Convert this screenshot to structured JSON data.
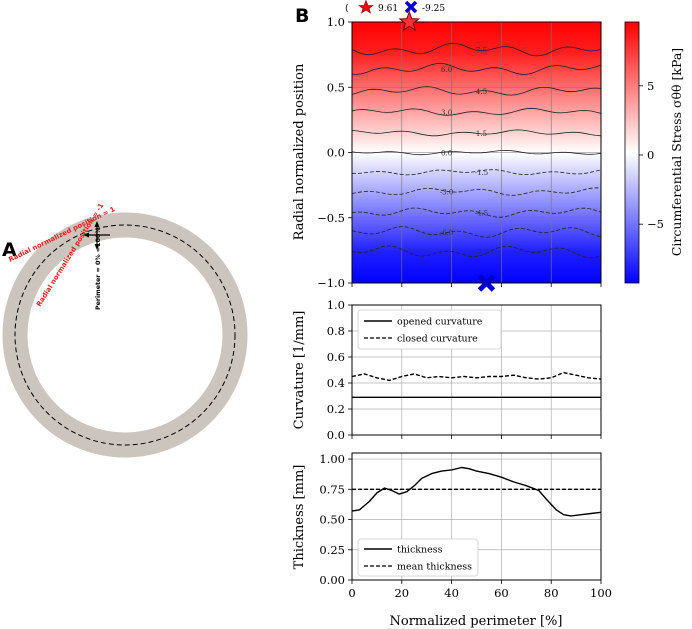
{
  "panel_a": {
    "letter": "A",
    "label_outer": "Radial normalized position = 1",
    "label_inner": "Radial normalized position = -1",
    "label_perimeter": "Perimeter = 0% =100%"
  },
  "panel_b": {
    "letter": "B"
  },
  "markers": {
    "max_value": "9.61",
    "min_value": "-9.25"
  },
  "colors": {
    "red": "#ff0000",
    "white": "#ffffff",
    "blue": "#0000ff",
    "ring": "#cbc5bd",
    "grid": "#b0b0b0"
  },
  "chart_data": [
    {
      "type": "heatmap",
      "ylabel": "Radial normalized position",
      "colorbar_label": "Circumferential Stress σθθ [kPa]",
      "colorbar_ticks": [
        "5",
        "0",
        "−5"
      ],
      "colorbar_range": [
        -9.25,
        9.61
      ],
      "x_range": [
        0,
        100
      ],
      "y_range": [
        -1,
        1
      ],
      "yticks": [
        "1.0",
        "0.5",
        "0.0",
        "−0.5",
        "−1.0"
      ],
      "contours": [
        {
          "level": "7.5",
          "y": 0.79,
          "style": "solid"
        },
        {
          "level": "6.0",
          "y": 0.64,
          "style": "solid"
        },
        {
          "level": "4.5",
          "y": 0.47,
          "style": "solid"
        },
        {
          "level": "3.0",
          "y": 0.31,
          "style": "solid"
        },
        {
          "level": "1.5",
          "y": 0.15,
          "style": "solid"
        },
        {
          "level": "0.0",
          "y": 0.0,
          "style": "solid"
        },
        {
          "level": "-1.5",
          "y": -0.15,
          "style": "dashed"
        },
        {
          "level": "-3.0",
          "y": -0.3,
          "style": "dashed"
        },
        {
          "level": "-4.5",
          "y": -0.46,
          "style": "dashed"
        },
        {
          "level": "-6.0",
          "y": -0.61,
          "style": "dashed"
        },
        {
          "level": "-7.5",
          "y": -0.76,
          "style": "dashed"
        }
      ],
      "max_marker": {
        "x": 23,
        "y": 1.0
      },
      "min_marker": {
        "x": 54,
        "y": -1.0
      }
    },
    {
      "type": "line",
      "ylabel": "Curvature [1/mm]",
      "ylim": [
        0,
        1
      ],
      "yticks": [
        "1.0",
        "0.8",
        "0.6",
        "0.4",
        "0.2",
        "0.0"
      ],
      "legend": [
        "opened curvature",
        "closed curvature"
      ],
      "series": [
        {
          "name": "opened curvature",
          "style": "solid",
          "x": [
            0,
            100
          ],
          "values": [
            0.29,
            0.29
          ]
        },
        {
          "name": "closed curvature",
          "style": "dashed",
          "x": [
            0,
            5,
            10,
            15,
            20,
            25,
            30,
            35,
            40,
            45,
            50,
            55,
            60,
            65,
            70,
            75,
            80,
            85,
            90,
            95,
            100
          ],
          "values": [
            0.45,
            0.47,
            0.44,
            0.42,
            0.45,
            0.47,
            0.44,
            0.45,
            0.44,
            0.45,
            0.44,
            0.45,
            0.45,
            0.46,
            0.44,
            0.43,
            0.44,
            0.48,
            0.46,
            0.44,
            0.43
          ]
        }
      ]
    },
    {
      "type": "line",
      "ylabel": "Thickness [mm]",
      "xlabel": "Normalized perimeter [%]",
      "ylim": [
        0,
        1.05
      ],
      "xticks": [
        "0",
        "20",
        "40",
        "60",
        "80",
        "100"
      ],
      "yticks": [
        "1.00",
        "0.75",
        "0.50",
        "0.25",
        "0.00"
      ],
      "legend": [
        "thickness",
        "mean thickness"
      ],
      "series": [
        {
          "name": "thickness",
          "style": "solid",
          "x": [
            0,
            3,
            7,
            10,
            13,
            16,
            19,
            22,
            25,
            28,
            32,
            36,
            40,
            44,
            47,
            50,
            55,
            60,
            65,
            70,
            75,
            78,
            82,
            85,
            88,
            92,
            96,
            100
          ],
          "values": [
            0.57,
            0.58,
            0.65,
            0.72,
            0.76,
            0.74,
            0.71,
            0.73,
            0.78,
            0.84,
            0.88,
            0.9,
            0.91,
            0.93,
            0.92,
            0.9,
            0.88,
            0.85,
            0.81,
            0.78,
            0.74,
            0.67,
            0.58,
            0.54,
            0.53,
            0.54,
            0.55,
            0.56
          ]
        },
        {
          "name": "mean thickness",
          "style": "dashed",
          "x": [
            0,
            100
          ],
          "values": [
            0.75,
            0.75
          ]
        }
      ]
    }
  ]
}
